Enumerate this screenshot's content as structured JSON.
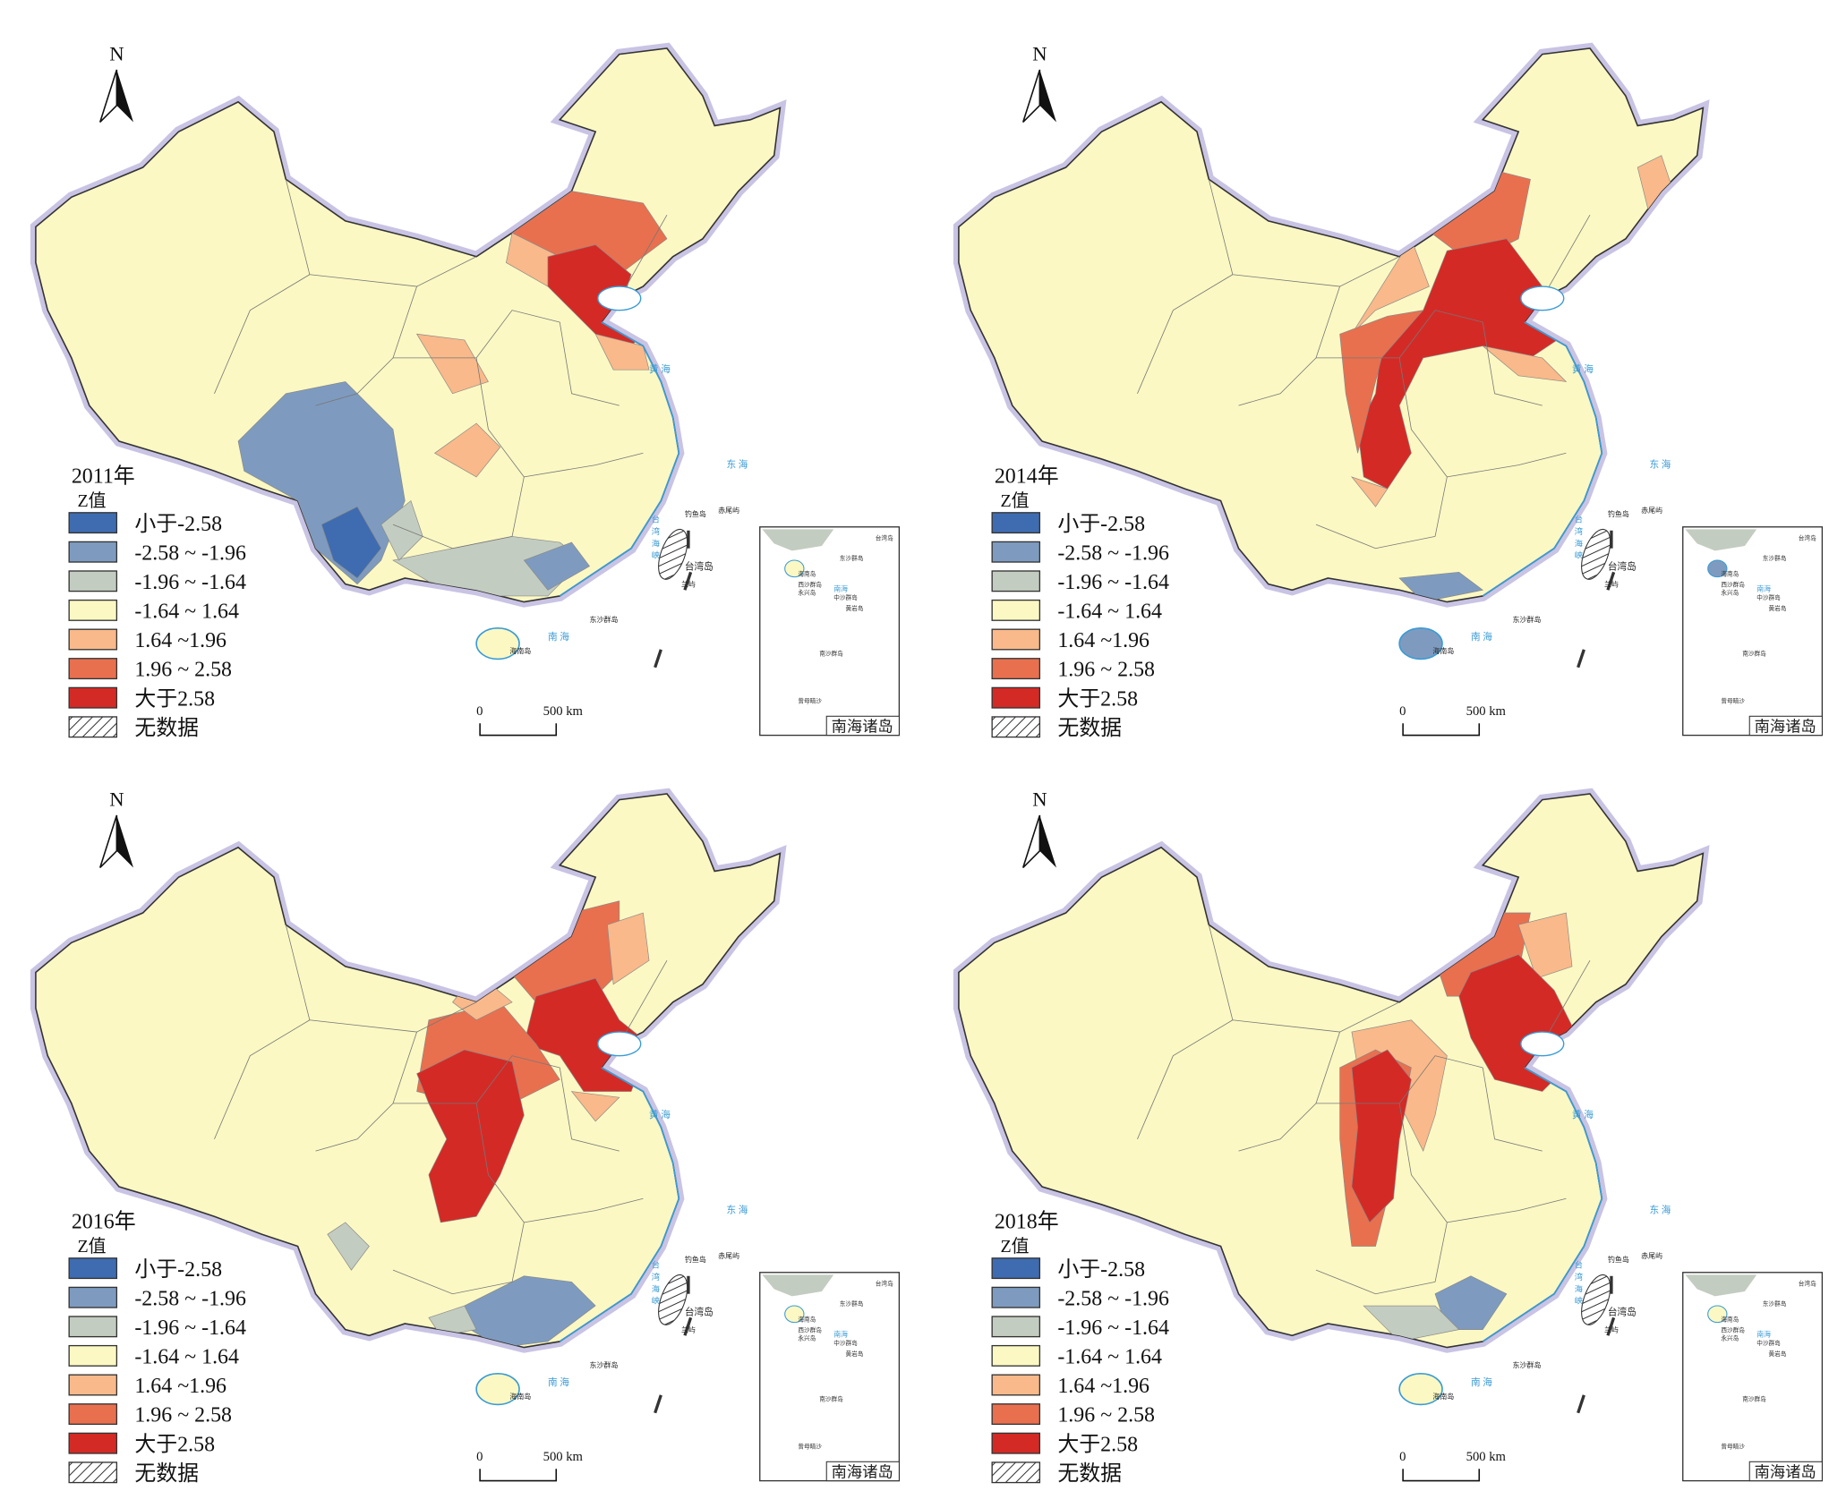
{
  "legend": {
    "heading": "Z值",
    "classes": [
      {
        "label": "小于-2.58",
        "color": "#3f6cb0"
      },
      {
        "label": "-2.58 ~ -1.96",
        "color": "#7e9bbf"
      },
      {
        "label": "-1.96 ~ -1.64",
        "color": "#c3ccc0"
      },
      {
        "label": "-1.64 ~ 1.64",
        "color": "#fbf8c3"
      },
      {
        "label": "1.64 ~1.96",
        "color": "#f9b98a"
      },
      {
        "label": "1.96 ~ 2.58",
        "color": "#e8704f"
      },
      {
        "label": "大于2.58",
        "color": "#d42a26"
      },
      {
        "label": "无数据",
        "color": "hatch"
      }
    ]
  },
  "north_label": "N",
  "scale_bar": {
    "zero": "0",
    "end": "500 km"
  },
  "inset_title": "南海诸岛",
  "map_labels": {
    "yellow_sea": "黄 海",
    "east_sea": "东 海",
    "south_sea": "南 海",
    "taiwan_strait": "台湾海峡",
    "taiwan": "台湾岛",
    "diaoyu": "钓鱼岛",
    "chiwei": "赤尾屿",
    "lanyu": "兰屿",
    "dongsha": "东沙群岛",
    "hainan": "海南岛"
  },
  "inset_labels": {
    "taiwan": "台湾岛",
    "dongsha": "东沙群岛",
    "hainan": "海南岛",
    "xisha": "西沙群岛",
    "yongxing": "永兴岛",
    "zhongsha": "中沙群岛",
    "huangyan": "黄岩岛",
    "nansha": "南沙群岛",
    "nan_hai": "南海",
    "zengmu": "曾母暗沙"
  },
  "panels": [
    {
      "year": "2011年"
    },
    {
      "year": "2014年"
    },
    {
      "year": "2016年"
    },
    {
      "year": "2018年"
    }
  ]
}
